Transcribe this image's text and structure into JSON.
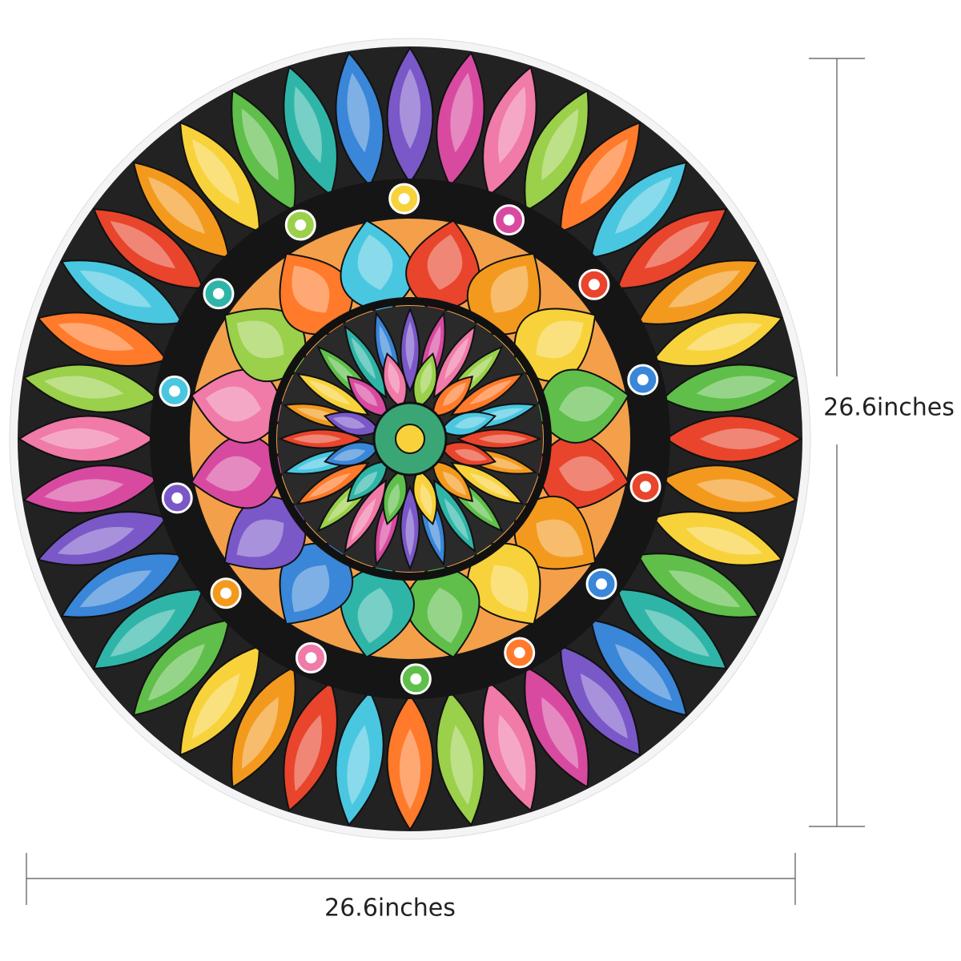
{
  "dimensions": {
    "height": "26.6inches",
    "width": "26.6inches"
  }
}
